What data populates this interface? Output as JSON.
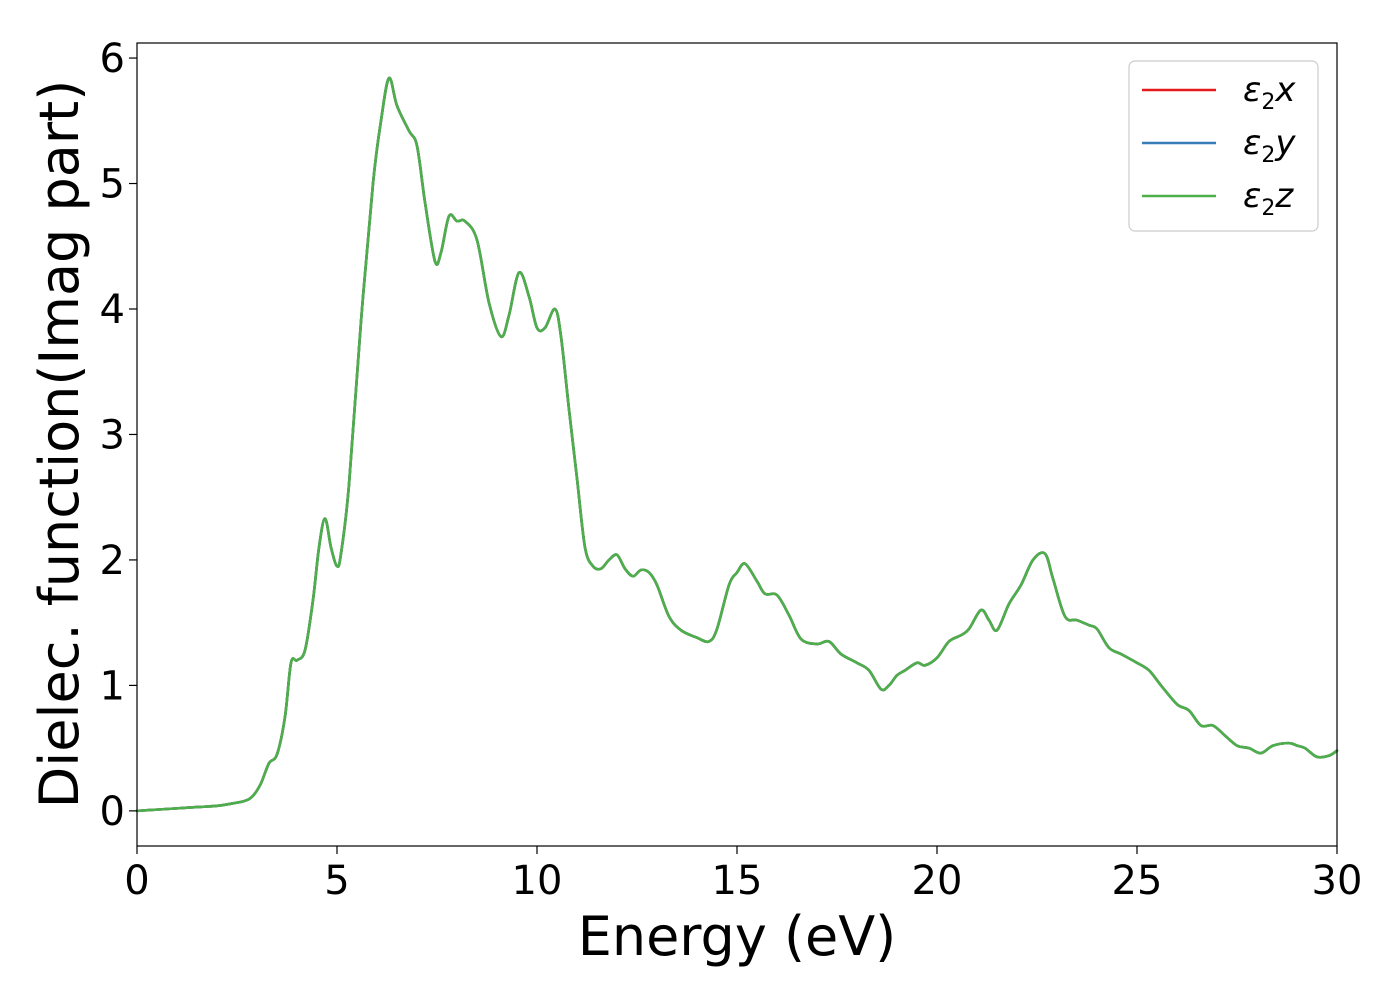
{
  "chart_data": {
    "type": "line",
    "xlabel": "Energy (eV)",
    "ylabel": "Dielec. function(Imag part)",
    "xlim": [
      0,
      30
    ],
    "ylim": [
      -0.28,
      6.12
    ],
    "xticks": [
      0,
      5,
      10,
      15,
      20,
      25,
      30
    ],
    "yticks": [
      0,
      1,
      2,
      3,
      4,
      5,
      6
    ],
    "grid": false,
    "legend_position": "top-right",
    "series": [
      {
        "name": "ε2x",
        "legend": {
          "base": "ε",
          "sub": "2",
          "tail": "x"
        },
        "color": "#e41a1c",
        "x": [
          0,
          0.5,
          1,
          1.5,
          2,
          2.4,
          2.7,
          2.9,
          3.1,
          3.3,
          3.5,
          3.7,
          3.85,
          4.0,
          4.2,
          4.4,
          4.55,
          4.7,
          4.85,
          5.0,
          5.1,
          5.3,
          5.6,
          5.9,
          6.1,
          6.3,
          6.5,
          6.8,
          7.0,
          7.2,
          7.45,
          7.6,
          7.8,
          8.0,
          8.2,
          8.5,
          8.8,
          9.1,
          9.3,
          9.55,
          9.8,
          10.0,
          10.2,
          10.45,
          10.6,
          10.8,
          11.0,
          11.2,
          11.4,
          11.6,
          11.8,
          12.0,
          12.2,
          12.4,
          12.6,
          12.8,
          13.0,
          13.3,
          13.6,
          14.0,
          14.3,
          14.5,
          14.8,
          15.0,
          15.2,
          15.5,
          15.7,
          16.0,
          16.3,
          16.6,
          17.0,
          17.3,
          17.6,
          18.0,
          18.3,
          18.6,
          18.8,
          19.0,
          19.2,
          19.5,
          19.7,
          20.0,
          20.3,
          20.6,
          20.8,
          21.1,
          21.3,
          21.5,
          21.8,
          22.1,
          22.4,
          22.7,
          22.9,
          23.2,
          23.5,
          23.8,
          24.0,
          24.3,
          24.6,
          25.0,
          25.3,
          25.6,
          26.0,
          26.3,
          26.6,
          26.9,
          27.2,
          27.5,
          27.8,
          28.1,
          28.4,
          28.8,
          29.0,
          29.2,
          29.5,
          29.8,
          30.0
        ],
        "y": [
          0.0,
          0.01,
          0.02,
          0.03,
          0.04,
          0.06,
          0.08,
          0.12,
          0.22,
          0.38,
          0.45,
          0.75,
          1.18,
          1.2,
          1.28,
          1.68,
          2.1,
          2.33,
          2.1,
          1.95,
          2.05,
          2.6,
          3.9,
          5.0,
          5.5,
          5.84,
          5.62,
          5.42,
          5.3,
          4.85,
          4.38,
          4.45,
          4.74,
          4.7,
          4.7,
          4.55,
          4.05,
          3.78,
          3.95,
          4.29,
          4.1,
          3.85,
          3.85,
          4.0,
          3.78,
          3.2,
          2.65,
          2.1,
          1.95,
          1.93,
          2.0,
          2.04,
          1.93,
          1.87,
          1.92,
          1.9,
          1.8,
          1.55,
          1.44,
          1.38,
          1.35,
          1.45,
          1.8,
          1.9,
          1.97,
          1.83,
          1.73,
          1.72,
          1.56,
          1.37,
          1.33,
          1.35,
          1.25,
          1.18,
          1.12,
          0.97,
          1.0,
          1.08,
          1.12,
          1.18,
          1.16,
          1.22,
          1.35,
          1.4,
          1.45,
          1.6,
          1.52,
          1.44,
          1.65,
          1.8,
          2.0,
          2.05,
          1.85,
          1.55,
          1.52,
          1.48,
          1.45,
          1.3,
          1.25,
          1.18,
          1.12,
          1.0,
          0.85,
          0.8,
          0.68,
          0.68,
          0.6,
          0.52,
          0.5,
          0.46,
          0.52,
          0.54,
          0.52,
          0.5,
          0.43,
          0.44,
          0.48
        ]
      },
      {
        "name": "ε2y",
        "legend": {
          "base": "ε",
          "sub": "2",
          "tail": "y"
        },
        "color": "#377eb8",
        "x": [
          0,
          0.5,
          1,
          1.5,
          2,
          2.4,
          2.7,
          2.9,
          3.1,
          3.3,
          3.5,
          3.7,
          3.85,
          4.0,
          4.2,
          4.4,
          4.55,
          4.7,
          4.85,
          5.0,
          5.1,
          5.3,
          5.6,
          5.9,
          6.1,
          6.3,
          6.5,
          6.8,
          7.0,
          7.2,
          7.45,
          7.6,
          7.8,
          8.0,
          8.2,
          8.5,
          8.8,
          9.1,
          9.3,
          9.55,
          9.8,
          10.0,
          10.2,
          10.45,
          10.6,
          10.8,
          11.0,
          11.2,
          11.4,
          11.6,
          11.8,
          12.0,
          12.2,
          12.4,
          12.6,
          12.8,
          13.0,
          13.3,
          13.6,
          14.0,
          14.3,
          14.5,
          14.8,
          15.0,
          15.2,
          15.5,
          15.7,
          16.0,
          16.3,
          16.6,
          17.0,
          17.3,
          17.6,
          18.0,
          18.3,
          18.6,
          18.8,
          19.0,
          19.2,
          19.5,
          19.7,
          20.0,
          20.3,
          20.6,
          20.8,
          21.1,
          21.3,
          21.5,
          21.8,
          22.1,
          22.4,
          22.7,
          22.9,
          23.2,
          23.5,
          23.8,
          24.0,
          24.3,
          24.6,
          25.0,
          25.3,
          25.6,
          26.0,
          26.3,
          26.6,
          26.9,
          27.2,
          27.5,
          27.8,
          28.1,
          28.4,
          28.8,
          29.0,
          29.2,
          29.5,
          29.8,
          30.0
        ],
        "y": [
          0.0,
          0.01,
          0.02,
          0.03,
          0.04,
          0.06,
          0.08,
          0.12,
          0.22,
          0.38,
          0.45,
          0.75,
          1.18,
          1.2,
          1.28,
          1.68,
          2.1,
          2.33,
          2.1,
          1.95,
          2.05,
          2.6,
          3.9,
          5.0,
          5.5,
          5.84,
          5.62,
          5.42,
          5.3,
          4.85,
          4.38,
          4.45,
          4.74,
          4.7,
          4.7,
          4.55,
          4.05,
          3.78,
          3.95,
          4.29,
          4.1,
          3.85,
          3.85,
          4.0,
          3.78,
          3.2,
          2.65,
          2.1,
          1.95,
          1.93,
          2.0,
          2.04,
          1.93,
          1.87,
          1.92,
          1.9,
          1.8,
          1.55,
          1.44,
          1.38,
          1.35,
          1.45,
          1.8,
          1.9,
          1.97,
          1.83,
          1.73,
          1.72,
          1.56,
          1.37,
          1.33,
          1.35,
          1.25,
          1.18,
          1.12,
          0.97,
          1.0,
          1.08,
          1.12,
          1.18,
          1.16,
          1.22,
          1.35,
          1.4,
          1.45,
          1.6,
          1.52,
          1.44,
          1.65,
          1.8,
          2.0,
          2.05,
          1.85,
          1.55,
          1.52,
          1.48,
          1.45,
          1.3,
          1.25,
          1.18,
          1.12,
          1.0,
          0.85,
          0.8,
          0.68,
          0.68,
          0.6,
          0.52,
          0.5,
          0.46,
          0.52,
          0.54,
          0.52,
          0.5,
          0.43,
          0.44,
          0.48
        ]
      },
      {
        "name": "ε2z",
        "legend": {
          "base": "ε",
          "sub": "2",
          "tail": "z"
        },
        "color": "#4daf4a",
        "x": [
          0,
          0.5,
          1,
          1.5,
          2,
          2.4,
          2.7,
          2.9,
          3.1,
          3.3,
          3.5,
          3.7,
          3.85,
          4.0,
          4.2,
          4.4,
          4.55,
          4.7,
          4.85,
          5.0,
          5.1,
          5.3,
          5.6,
          5.9,
          6.1,
          6.3,
          6.5,
          6.8,
          7.0,
          7.2,
          7.45,
          7.6,
          7.8,
          8.0,
          8.2,
          8.5,
          8.8,
          9.1,
          9.3,
          9.55,
          9.8,
          10.0,
          10.2,
          10.45,
          10.6,
          10.8,
          11.0,
          11.2,
          11.4,
          11.6,
          11.8,
          12.0,
          12.2,
          12.4,
          12.6,
          12.8,
          13.0,
          13.3,
          13.6,
          14.0,
          14.3,
          14.5,
          14.8,
          15.0,
          15.2,
          15.5,
          15.7,
          16.0,
          16.3,
          16.6,
          17.0,
          17.3,
          17.6,
          18.0,
          18.3,
          18.6,
          18.8,
          19.0,
          19.2,
          19.5,
          19.7,
          20.0,
          20.3,
          20.6,
          20.8,
          21.1,
          21.3,
          21.5,
          21.8,
          22.1,
          22.4,
          22.7,
          22.9,
          23.2,
          23.5,
          23.8,
          24.0,
          24.3,
          24.6,
          25.0,
          25.3,
          25.6,
          26.0,
          26.3,
          26.6,
          26.9,
          27.2,
          27.5,
          27.8,
          28.1,
          28.4,
          28.8,
          29.0,
          29.2,
          29.5,
          29.8,
          30.0
        ],
        "y": [
          0.0,
          0.01,
          0.02,
          0.03,
          0.04,
          0.06,
          0.08,
          0.12,
          0.22,
          0.38,
          0.45,
          0.75,
          1.18,
          1.2,
          1.28,
          1.68,
          2.1,
          2.33,
          2.1,
          1.95,
          2.05,
          2.6,
          3.9,
          5.0,
          5.5,
          5.84,
          5.62,
          5.42,
          5.3,
          4.85,
          4.38,
          4.45,
          4.74,
          4.7,
          4.7,
          4.55,
          4.05,
          3.78,
          3.95,
          4.29,
          4.1,
          3.85,
          3.85,
          4.0,
          3.78,
          3.2,
          2.65,
          2.1,
          1.95,
          1.93,
          2.0,
          2.04,
          1.93,
          1.87,
          1.92,
          1.9,
          1.8,
          1.55,
          1.44,
          1.38,
          1.35,
          1.45,
          1.8,
          1.9,
          1.97,
          1.83,
          1.73,
          1.72,
          1.56,
          1.37,
          1.33,
          1.35,
          1.25,
          1.18,
          1.12,
          0.97,
          1.0,
          1.08,
          1.12,
          1.18,
          1.16,
          1.22,
          1.35,
          1.4,
          1.45,
          1.6,
          1.52,
          1.44,
          1.65,
          1.8,
          2.0,
          2.05,
          1.85,
          1.55,
          1.52,
          1.48,
          1.45,
          1.3,
          1.25,
          1.18,
          1.12,
          1.0,
          0.85,
          0.8,
          0.68,
          0.68,
          0.6,
          0.52,
          0.5,
          0.46,
          0.52,
          0.54,
          0.52,
          0.5,
          0.43,
          0.44,
          0.48
        ]
      }
    ]
  }
}
